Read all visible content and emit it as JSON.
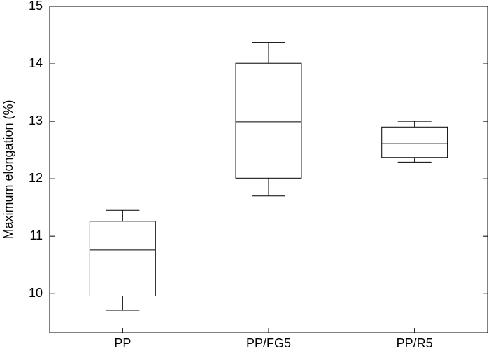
{
  "chart_data": {
    "type": "box",
    "y_label": "Maximum elongation (%)",
    "categories": [
      "PP",
      "PP/FG5",
      "PP/R5"
    ],
    "boxes": [
      {
        "low": 9.71,
        "q1": 9.96,
        "median": 10.76,
        "q3": 11.26,
        "high": 11.45
      },
      {
        "low": 11.7,
        "q1": 12.01,
        "median": 12.99,
        "q3": 14.01,
        "high": 14.37
      },
      {
        "low": 12.29,
        "q1": 12.37,
        "median": 12.61,
        "q3": 12.9,
        "high": 13.0
      }
    ],
    "color": "#000000",
    "ylim": [
      9.32,
      15
    ],
    "yticks": [
      10,
      11,
      12,
      13,
      14,
      15
    ]
  }
}
